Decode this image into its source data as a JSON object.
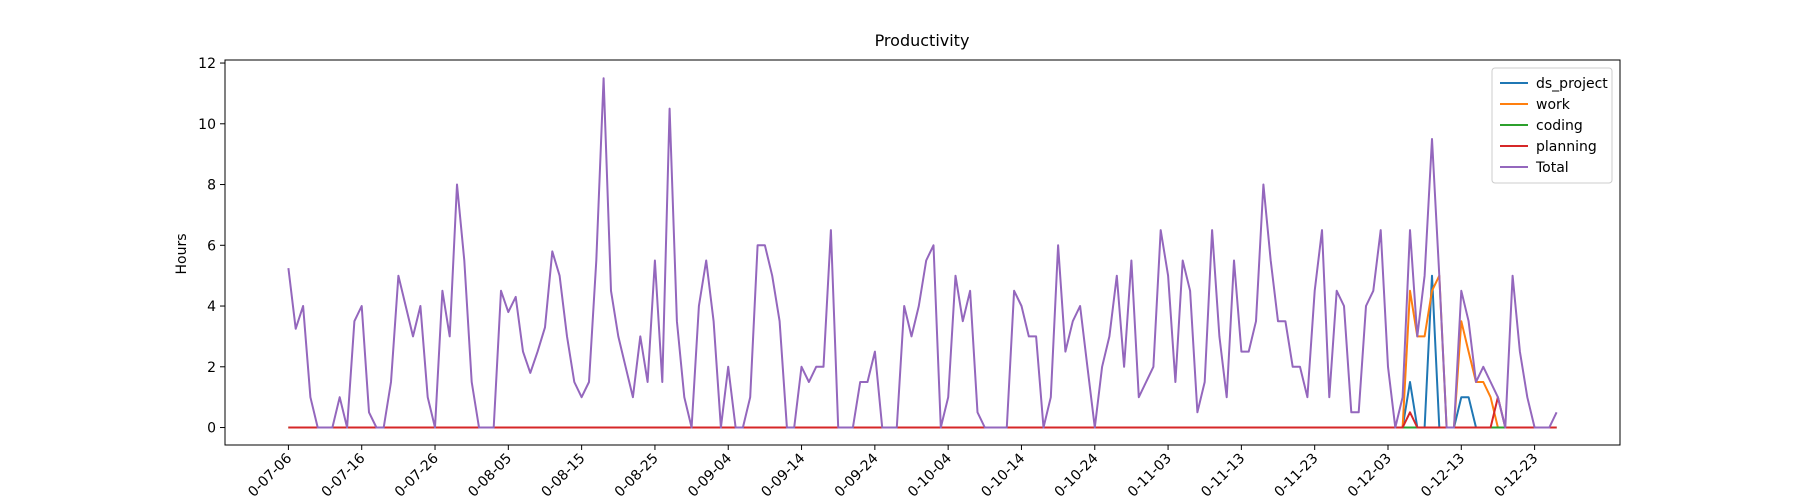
{
  "chart_data": {
    "type": "line",
    "title": "Productivity",
    "y_label": "Hours",
    "x": [
      "07-06",
      "07-07",
      "07-08",
      "07-09",
      "07-10",
      "07-11",
      "07-12",
      "07-13",
      "07-14",
      "07-15",
      "07-16",
      "07-17",
      "07-18",
      "07-19",
      "07-20",
      "07-21",
      "07-22",
      "07-23",
      "07-24",
      "07-25",
      "07-26",
      "07-27",
      "07-28",
      "07-29",
      "07-30",
      "07-31",
      "08-01",
      "08-02",
      "08-03",
      "08-04",
      "08-05",
      "08-06",
      "08-07",
      "08-08",
      "08-09",
      "08-10",
      "08-11",
      "08-12",
      "08-13",
      "08-14",
      "08-15",
      "08-16",
      "08-17",
      "08-18",
      "08-19",
      "08-20",
      "08-21",
      "08-22",
      "08-23",
      "08-24",
      "08-25",
      "08-26",
      "08-27",
      "08-28",
      "08-29",
      "08-30",
      "08-31",
      "09-01",
      "09-02",
      "09-03",
      "09-04",
      "09-05",
      "09-06",
      "09-07",
      "09-08",
      "09-09",
      "09-10",
      "09-11",
      "09-12",
      "09-13",
      "09-14",
      "09-15",
      "09-16",
      "09-17",
      "09-18",
      "09-19",
      "09-20",
      "09-21",
      "09-22",
      "09-23",
      "09-24",
      "09-25",
      "09-26",
      "09-27",
      "09-28",
      "09-29",
      "09-30",
      "10-01",
      "10-02",
      "10-03",
      "10-04",
      "10-05",
      "10-06",
      "10-07",
      "10-08",
      "10-09",
      "10-10",
      "10-11",
      "10-12",
      "10-13",
      "10-14",
      "10-15",
      "10-16",
      "10-17",
      "10-18",
      "10-19",
      "10-20",
      "10-21",
      "10-22",
      "10-23",
      "10-24",
      "10-25",
      "10-26",
      "10-27",
      "10-28",
      "10-29",
      "10-30",
      "10-31",
      "11-01",
      "11-02",
      "11-03",
      "11-04",
      "11-05",
      "11-06",
      "11-07",
      "11-08",
      "11-09",
      "11-10",
      "11-11",
      "11-12",
      "11-13",
      "11-14",
      "11-15",
      "11-16",
      "11-17",
      "11-18",
      "11-19",
      "11-20",
      "11-21",
      "11-22",
      "11-23",
      "11-24",
      "11-25",
      "11-26",
      "11-27",
      "11-28",
      "11-29",
      "11-30",
      "12-01",
      "12-02",
      "12-03",
      "12-04",
      "12-05",
      "12-06",
      "12-07",
      "12-08",
      "12-09",
      "12-10",
      "12-11",
      "12-12",
      "12-13",
      "12-14",
      "12-15",
      "12-16",
      "12-17",
      "12-18",
      "12-19",
      "12-20",
      "12-21",
      "12-22",
      "12-23",
      "12-24",
      "12-25",
      "12-26"
    ],
    "series": [
      {
        "name": "ds_project",
        "color": "#1f77b4",
        "values": [
          0,
          0,
          0,
          0,
          0,
          0,
          0,
          0,
          0,
          0,
          0,
          0,
          0,
          0,
          0,
          0,
          0,
          0,
          0,
          0,
          0,
          0,
          0,
          0,
          0,
          0,
          0,
          0,
          0,
          0,
          0,
          0,
          0,
          0,
          0,
          0,
          0,
          0,
          0,
          0,
          0,
          0,
          0,
          0,
          0,
          0,
          0,
          0,
          0,
          0,
          0,
          0,
          0,
          0,
          0,
          0,
          0,
          0,
          0,
          0,
          0,
          0,
          0,
          0,
          0,
          0,
          0,
          0,
          0,
          0,
          0,
          0,
          0,
          0,
          0,
          0,
          0,
          0,
          0,
          0,
          0,
          0,
          0,
          0,
          0,
          0,
          0,
          0,
          0,
          0,
          0,
          0,
          0,
          0,
          0,
          0,
          0,
          0,
          0,
          0,
          0,
          0,
          0,
          0,
          0,
          0,
          0,
          0,
          0,
          0,
          0,
          0,
          0,
          0,
          0,
          0,
          0,
          0,
          0,
          0,
          0,
          0,
          0,
          0,
          0,
          0,
          0,
          0,
          0,
          0,
          0,
          0,
          0,
          0,
          0,
          0,
          0,
          0,
          0,
          0,
          0,
          0,
          0,
          0,
          0,
          0,
          0,
          0,
          0,
          0,
          0,
          0,
          0,
          1.5,
          0,
          0,
          5,
          0,
          0,
          0,
          1,
          1,
          0,
          0,
          0,
          0,
          0,
          0,
          0,
          0,
          0,
          0,
          0,
          0
        ]
      },
      {
        "name": "work",
        "color": "#ff7f0e",
        "values": [
          0,
          0,
          0,
          0,
          0,
          0,
          0,
          0,
          0,
          0,
          0,
          0,
          0,
          0,
          0,
          0,
          0,
          0,
          0,
          0,
          0,
          0,
          0,
          0,
          0,
          0,
          0,
          0,
          0,
          0,
          0,
          0,
          0,
          0,
          0,
          0,
          0,
          0,
          0,
          0,
          0,
          0,
          0,
          0,
          0,
          0,
          0,
          0,
          0,
          0,
          0,
          0,
          0,
          0,
          0,
          0,
          0,
          0,
          0,
          0,
          0,
          0,
          0,
          0,
          0,
          0,
          0,
          0,
          0,
          0,
          0,
          0,
          0,
          0,
          0,
          0,
          0,
          0,
          0,
          0,
          0,
          0,
          0,
          0,
          0,
          0,
          0,
          0,
          0,
          0,
          0,
          0,
          0,
          0,
          0,
          0,
          0,
          0,
          0,
          0,
          0,
          0,
          0,
          0,
          0,
          0,
          0,
          0,
          0,
          0,
          0,
          0,
          0,
          0,
          0,
          0,
          0,
          0,
          0,
          0,
          0,
          0,
          0,
          0,
          0,
          0,
          0,
          0,
          0,
          0,
          0,
          0,
          0,
          0,
          0,
          0,
          0,
          0,
          0,
          0,
          0,
          0,
          0,
          0,
          0,
          0,
          0,
          0,
          0,
          0,
          0,
          0,
          0,
          4.5,
          3,
          3,
          4.5,
          5,
          0,
          0,
          3.5,
          2.5,
          1.5,
          1.5,
          1,
          0,
          0,
          0,
          0,
          0,
          0,
          0,
          0,
          0
        ]
      },
      {
        "name": "coding",
        "color": "#2ca02c",
        "values": [
          0,
          0,
          0,
          0,
          0,
          0,
          0,
          0,
          0,
          0,
          0,
          0,
          0,
          0,
          0,
          0,
          0,
          0,
          0,
          0,
          0,
          0,
          0,
          0,
          0,
          0,
          0,
          0,
          0,
          0,
          0,
          0,
          0,
          0,
          0,
          0,
          0,
          0,
          0,
          0,
          0,
          0,
          0,
          0,
          0,
          0,
          0,
          0,
          0,
          0,
          0,
          0,
          0,
          0,
          0,
          0,
          0,
          0,
          0,
          0,
          0,
          0,
          0,
          0,
          0,
          0,
          0,
          0,
          0,
          0,
          0,
          0,
          0,
          0,
          0,
          0,
          0,
          0,
          0,
          0,
          0,
          0,
          0,
          0,
          0,
          0,
          0,
          0,
          0,
          0,
          0,
          0,
          0,
          0,
          0,
          0,
          0,
          0,
          0,
          0,
          0,
          0,
          0,
          0,
          0,
          0,
          0,
          0,
          0,
          0,
          0,
          0,
          0,
          0,
          0,
          0,
          0,
          0,
          0,
          0,
          0,
          0,
          0,
          0,
          0,
          0,
          0,
          0,
          0,
          0,
          0,
          0,
          0,
          0,
          0,
          0,
          0,
          0,
          0,
          0,
          0,
          0,
          0,
          0,
          0,
          0,
          0,
          0,
          0,
          0,
          0,
          0,
          0,
          0,
          0,
          0,
          0,
          0,
          0,
          0,
          0,
          0,
          0,
          0,
          0,
          0,
          0,
          0,
          0,
          0,
          0,
          0,
          0,
          0
        ]
      },
      {
        "name": "planning",
        "color": "#d62728",
        "values": [
          0,
          0,
          0,
          0,
          0,
          0,
          0,
          0,
          0,
          0,
          0,
          0,
          0,
          0,
          0,
          0,
          0,
          0,
          0,
          0,
          0,
          0,
          0,
          0,
          0,
          0,
          0,
          0,
          0,
          0,
          0,
          0,
          0,
          0,
          0,
          0,
          0,
          0,
          0,
          0,
          0,
          0,
          0,
          0,
          0,
          0,
          0,
          0,
          0,
          0,
          0,
          0,
          0,
          0,
          0,
          0,
          0,
          0,
          0,
          0,
          0,
          0,
          0,
          0,
          0,
          0,
          0,
          0,
          0,
          0,
          0,
          0,
          0,
          0,
          0,
          0,
          0,
          0,
          0,
          0,
          0,
          0,
          0,
          0,
          0,
          0,
          0,
          0,
          0,
          0,
          0,
          0,
          0,
          0,
          0,
          0,
          0,
          0,
          0,
          0,
          0,
          0,
          0,
          0,
          0,
          0,
          0,
          0,
          0,
          0,
          0,
          0,
          0,
          0,
          0,
          0,
          0,
          0,
          0,
          0,
          0,
          0,
          0,
          0,
          0,
          0,
          0,
          0,
          0,
          0,
          0,
          0,
          0,
          0,
          0,
          0,
          0,
          0,
          0,
          0,
          0,
          0,
          0,
          0,
          0,
          0,
          0,
          0,
          0,
          0,
          0,
          0,
          0,
          0.5,
          0,
          0,
          0,
          0,
          0,
          0,
          0,
          0,
          0,
          0,
          0,
          1,
          0,
          0,
          0,
          0,
          0,
          0,
          0,
          0
        ]
      },
      {
        "name": "Total",
        "color": "#9467bd",
        "values": [
          5.25,
          3.25,
          4,
          1,
          0,
          0,
          0,
          1,
          0,
          3.5,
          4,
          0.5,
          0,
          0,
          1.5,
          5,
          4,
          3,
          4,
          1,
          0,
          4.5,
          3,
          8,
          5.5,
          1.5,
          0,
          0,
          0,
          4.5,
          3.8,
          4.3,
          2.5,
          1.8,
          2.5,
          3.3,
          5.8,
          5,
          3,
          1.5,
          1,
          1.5,
          5.5,
          11.5,
          4.5,
          3,
          2,
          1,
          3,
          1.5,
          5.5,
          1.5,
          10.5,
          3.5,
          1,
          0,
          4,
          5.5,
          3.5,
          0,
          2,
          0,
          0,
          1,
          6,
          6,
          5,
          3.5,
          0,
          0,
          2,
          1.5,
          2,
          2,
          6.5,
          0,
          0,
          0,
          1.5,
          1.5,
          2.5,
          0,
          0,
          0,
          4,
          3,
          4,
          5.5,
          6,
          0,
          1,
          5,
          3.5,
          4.5,
          0.5,
          0,
          0,
          0,
          0,
          4.5,
          4,
          3,
          3,
          0,
          1,
          6,
          2.5,
          3.5,
          4,
          2,
          0,
          2,
          3,
          5,
          2,
          5.5,
          1,
          1.5,
          2,
          6.5,
          5,
          1.5,
          5.5,
          4.5,
          0.5,
          1.5,
          6.5,
          3,
          1,
          5.5,
          2.5,
          2.5,
          3.5,
          8,
          5.5,
          3.5,
          3.5,
          2,
          2,
          1,
          4.5,
          6.5,
          1,
          4.5,
          4,
          0.5,
          0.5,
          4,
          4.5,
          6.5,
          2,
          0,
          1,
          6.5,
          3,
          5,
          9.5,
          5,
          0,
          0,
          4.5,
          3.5,
          1.5,
          2,
          1.5,
          1,
          0,
          5,
          2.5,
          1,
          0,
          0,
          0,
          0.5
        ]
      }
    ],
    "xticks": [
      {
        "value": "07-06",
        "label": "0-07-06"
      },
      {
        "value": "07-16",
        "label": "0-07-16"
      },
      {
        "value": "07-26",
        "label": "0-07-26"
      },
      {
        "value": "08-05",
        "label": "0-08-05"
      },
      {
        "value": "08-15",
        "label": "0-08-15"
      },
      {
        "value": "08-25",
        "label": "0-08-25"
      },
      {
        "value": "09-04",
        "label": "0-09-04"
      },
      {
        "value": "09-14",
        "label": "0-09-14"
      },
      {
        "value": "09-24",
        "label": "0-09-24"
      },
      {
        "value": "10-04",
        "label": "0-10-04"
      },
      {
        "value": "10-14",
        "label": "0-10-14"
      },
      {
        "value": "10-24",
        "label": "0-10-24"
      },
      {
        "value": "11-03",
        "label": "0-11-03"
      },
      {
        "value": "11-13",
        "label": "0-11-13"
      },
      {
        "value": "11-23",
        "label": "0-11-23"
      },
      {
        "value": "12-03",
        "label": "0-12-03"
      },
      {
        "value": "12-13",
        "label": "0-12-13"
      },
      {
        "value": "12-23",
        "label": "0-12-23"
      }
    ],
    "ylim": [
      -0.575,
      12.1
    ],
    "yticks": [
      0,
      2,
      4,
      6,
      8,
      10,
      12
    ],
    "legend": "upper right"
  }
}
